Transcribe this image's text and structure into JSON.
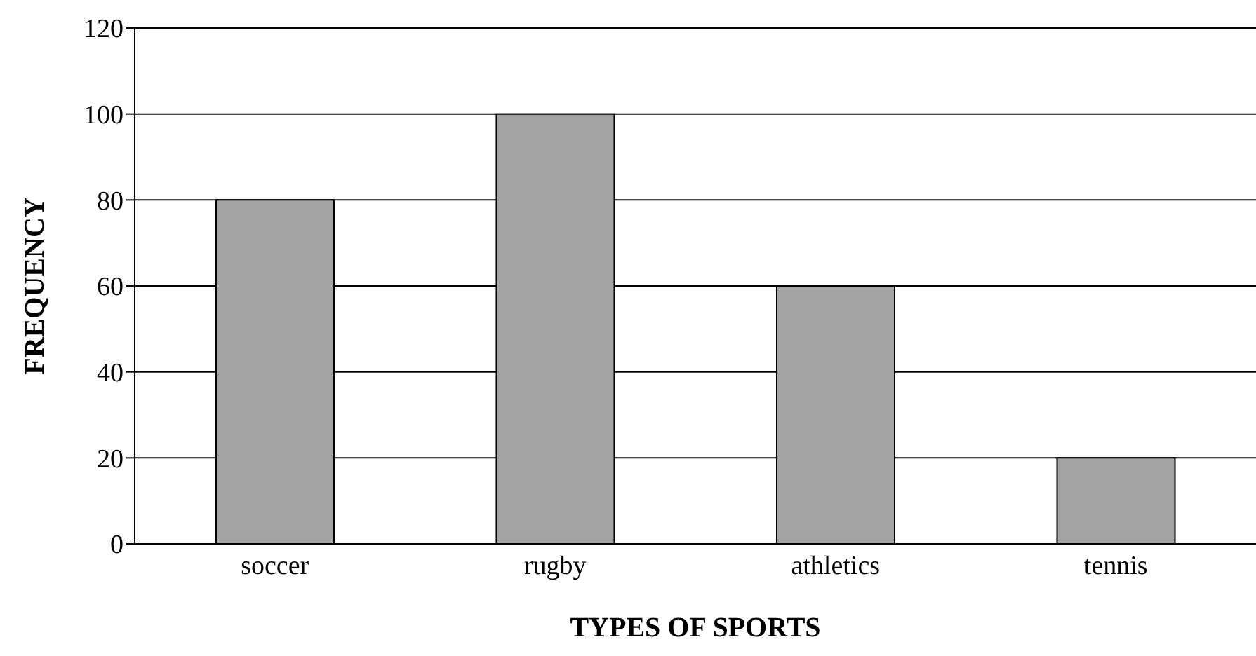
{
  "chart_data": {
    "type": "bar",
    "xlabel": "TYPES OF SPORTS",
    "ylabel": "FREQUENCY",
    "categories": [
      "soccer",
      "rugby",
      "athletics",
      "tennis"
    ],
    "values": [
      80,
      100,
      60,
      20
    ],
    "color": "#a3a3a3",
    "ylim": [
      0,
      120
    ],
    "yticks": [
      0,
      20,
      40,
      60,
      80,
      100,
      120
    ],
    "grid": "y"
  }
}
